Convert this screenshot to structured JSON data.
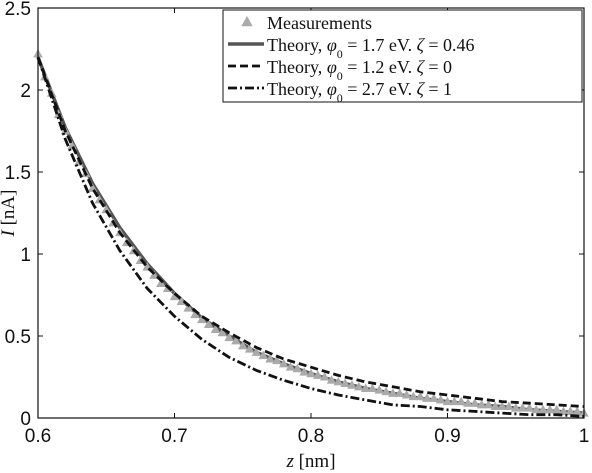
{
  "chart_data": {
    "type": "line",
    "xlabel_var": "z",
    "xlabel_unit": "[nm]",
    "ylabel_var": "I",
    "ylabel_unit": "[nA]",
    "xlim": [
      0.6,
      1.0
    ],
    "ylim": [
      0,
      2.5
    ],
    "xticks": [
      0.6,
      0.7,
      0.8,
      0.9,
      1.0
    ],
    "xtick_labels": [
      "0.6",
      "0.7",
      "0.8",
      "0.9",
      "1"
    ],
    "yticks": [
      0,
      0.5,
      1,
      1.5,
      2,
      2.5
    ],
    "ytick_labels": [
      "0",
      "0.5",
      "1",
      "1.5",
      "2",
      "2.5"
    ],
    "grid": false,
    "legend_position": "top-right",
    "series": [
      {
        "name": "Measurements",
        "style": "markers",
        "marker": "triangle",
        "color": "#aaaaaa",
        "x": [
          0.6,
          0.605,
          0.61,
          0.615,
          0.62,
          0.625,
          0.63,
          0.635,
          0.64,
          0.645,
          0.65,
          0.655,
          0.66,
          0.665,
          0.67,
          0.675,
          0.68,
          0.685,
          0.69,
          0.695,
          0.7,
          0.705,
          0.71,
          0.715,
          0.72,
          0.725,
          0.73,
          0.735,
          0.74,
          0.745,
          0.75,
          0.755,
          0.76,
          0.765,
          0.77,
          0.775,
          0.78,
          0.785,
          0.79,
          0.795,
          0.8,
          0.805,
          0.81,
          0.815,
          0.82,
          0.825,
          0.83,
          0.835,
          0.84,
          0.845,
          0.85,
          0.855,
          0.86,
          0.865,
          0.87,
          0.875,
          0.88,
          0.885,
          0.89,
          0.895,
          0.9,
          0.905,
          0.91,
          0.915,
          0.92,
          0.925,
          0.93,
          0.935,
          0.94,
          0.945,
          0.95,
          0.955,
          0.96,
          0.965,
          0.97,
          0.975,
          0.98,
          0.985,
          0.99,
          0.995,
          1.0
        ],
        "y": [
          2.22,
          2.08,
          1.98,
          1.85,
          1.75,
          1.66,
          1.56,
          1.49,
          1.4,
          1.33,
          1.27,
          1.19,
          1.13,
          1.07,
          1.02,
          0.96,
          0.92,
          0.87,
          0.82,
          0.79,
          0.74,
          0.71,
          0.67,
          0.63,
          0.6,
          0.57,
          0.54,
          0.52,
          0.49,
          0.47,
          0.44,
          0.42,
          0.4,
          0.38,
          0.36,
          0.35,
          0.33,
          0.31,
          0.3,
          0.28,
          0.27,
          0.26,
          0.25,
          0.23,
          0.22,
          0.21,
          0.2,
          0.19,
          0.18,
          0.18,
          0.17,
          0.16,
          0.15,
          0.15,
          0.14,
          0.13,
          0.13,
          0.12,
          0.12,
          0.11,
          0.1,
          0.1,
          0.1,
          0.09,
          0.09,
          0.08,
          0.08,
          0.07,
          0.07,
          0.07,
          0.06,
          0.06,
          0.06,
          0.05,
          0.05,
          0.05,
          0.05,
          0.04,
          0.04,
          0.04,
          0.03
        ]
      },
      {
        "name": "Theory, φ0 = 1.7 eV. ζ = 0.46",
        "legend_prefix": "Theory,",
        "legend_phi": "φ",
        "legend_phi_sub": "0",
        "legend_rest": " = 1.7 eV. ",
        "legend_zeta": "ζ",
        "legend_tail": " = 0.46",
        "style": "solid",
        "color": "#555555",
        "x": [
          0.6,
          0.62,
          0.64,
          0.66,
          0.68,
          0.7,
          0.72,
          0.74,
          0.76,
          0.78,
          0.8,
          0.82,
          0.84,
          0.86,
          0.88,
          0.9,
          0.92,
          0.94,
          0.96,
          0.98,
          1.0
        ],
        "y": [
          2.2,
          1.77,
          1.43,
          1.16,
          0.94,
          0.76,
          0.61,
          0.5,
          0.4,
          0.33,
          0.27,
          0.22,
          0.18,
          0.15,
          0.12,
          0.1,
          0.08,
          0.07,
          0.05,
          0.04,
          0.03
        ]
      },
      {
        "name": "Theory, φ0 = 1.2 eV. ζ = 0",
        "legend_prefix": "Theory,",
        "legend_phi": "φ",
        "legend_phi_sub": "0",
        "legend_rest": " = 1.2 eV. ",
        "legend_zeta": "ζ",
        "legend_tail": " = 0",
        "style": "dashed",
        "color": "#111111",
        "x": [
          0.6,
          0.62,
          0.64,
          0.66,
          0.68,
          0.7,
          0.72,
          0.74,
          0.76,
          0.78,
          0.8,
          0.82,
          0.84,
          0.86,
          0.88,
          0.9,
          0.92,
          0.94,
          0.96,
          0.98,
          1.0
        ],
        "y": [
          2.2,
          1.75,
          1.4,
          1.13,
          0.92,
          0.76,
          0.62,
          0.52,
          0.43,
          0.36,
          0.31,
          0.26,
          0.22,
          0.19,
          0.16,
          0.14,
          0.12,
          0.1,
          0.09,
          0.08,
          0.07
        ]
      },
      {
        "name": "Theory, φ0 = 2.7 eV. ζ = 1",
        "legend_prefix": "Theory,",
        "legend_phi": "φ",
        "legend_phi_sub": "0",
        "legend_rest": " = 2.7 eV. ",
        "legend_zeta": "ζ",
        "legend_tail": " = 1",
        "style": "dashdot",
        "color": "#111111",
        "x": [
          0.6,
          0.62,
          0.64,
          0.66,
          0.68,
          0.7,
          0.72,
          0.74,
          0.76,
          0.78,
          0.8,
          0.82,
          0.84,
          0.86,
          0.88,
          0.9,
          0.92,
          0.94,
          0.96,
          0.98,
          1.0
        ],
        "y": [
          2.2,
          1.7,
          1.31,
          1.02,
          0.79,
          0.62,
          0.48,
          0.37,
          0.29,
          0.23,
          0.18,
          0.14,
          0.11,
          0.08,
          0.07,
          0.05,
          0.04,
          0.03,
          0.02,
          0.02,
          0.01
        ]
      }
    ]
  }
}
